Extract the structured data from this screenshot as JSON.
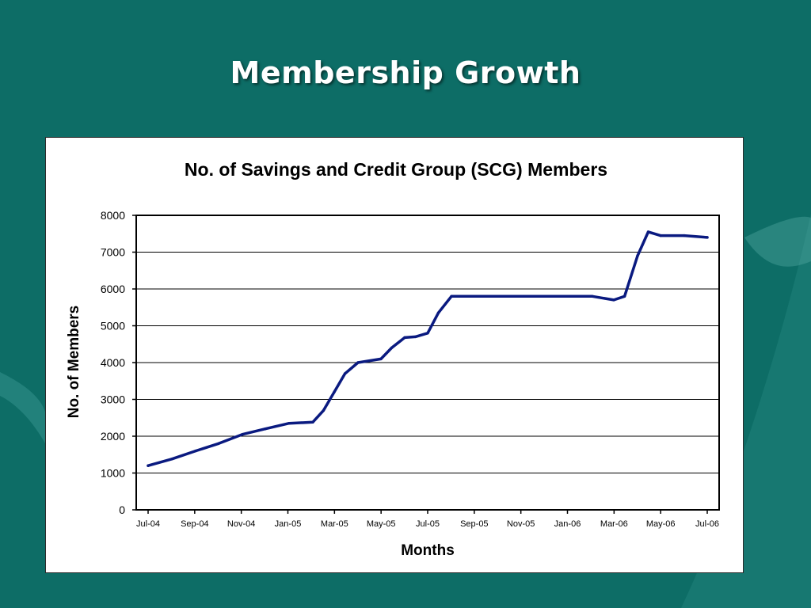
{
  "slide": {
    "title": "Membership Growth",
    "background_color": "#0d6d66"
  },
  "chart_data": {
    "type": "line",
    "title": "No. of Savings and Credit Group (SCG) Members",
    "xlabel": "Months",
    "ylabel": "No. of Members",
    "ylim": [
      0,
      8000
    ],
    "yticks": [
      0,
      1000,
      2000,
      3000,
      4000,
      5000,
      6000,
      7000,
      8000
    ],
    "x_tick_labels": [
      "Jul-04",
      "Sep-04",
      "Nov-04",
      "Jan-05",
      "Mar-05",
      "May-05",
      "Jul-05",
      "Sep-05",
      "Nov-05",
      "Jan-06",
      "Mar-06",
      "May-06",
      "Jul-06"
    ],
    "x_range": [
      "2004-07",
      "2006-07"
    ],
    "grid": "horizontal",
    "legend": "none",
    "line_color": "#0a1a80",
    "series": [
      {
        "x": [
          "2004-07",
          "2004-08",
          "2004-09",
          "2004-10",
          "2004-11",
          "2004-12",
          "2005-01",
          "2005-02",
          "2005-02-15",
          "2005-03",
          "2005-03-15",
          "2005-04",
          "2005-05",
          "2005-05-15",
          "2005-06",
          "2005-06-15",
          "2005-07",
          "2005-07-15",
          "2005-08",
          "2005-09",
          "2005-10",
          "2005-11",
          "2005-12",
          "2006-01",
          "2006-02",
          "2006-03",
          "2006-03-15",
          "2006-04",
          "2006-04-15",
          "2006-05",
          "2006-06",
          "2006-07"
        ],
        "values": [
          1200,
          1380,
          1600,
          1800,
          2050,
          2200,
          2350,
          2380,
          2700,
          3200,
          3700,
          4000,
          4100,
          4400,
          4680,
          4700,
          4800,
          5350,
          5800,
          5800,
          5800,
          5800,
          5800,
          5800,
          5800,
          5700,
          5800,
          6900,
          7550,
          7450,
          7450,
          7400
        ]
      }
    ]
  }
}
